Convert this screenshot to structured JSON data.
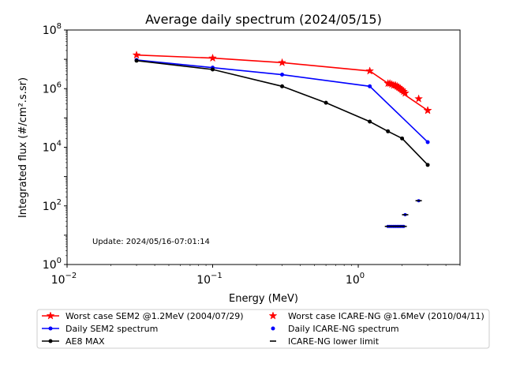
{
  "chart_data": {
    "type": "line",
    "title": "Average daily spectrum (2024/05/15)",
    "xlabel": "Energy (MeV)",
    "ylabel": "Integrated flux (#/cm².s.sr)",
    "xscale": "log",
    "yscale": "log",
    "xlim": [
      0.01,
      5
    ],
    "ylim": [
      1,
      100000000
    ],
    "x_ticks": [
      {
        "value": 0.01,
        "base": "10",
        "exp": "−2"
      },
      {
        "value": 0.1,
        "base": "10",
        "exp": "−1"
      },
      {
        "value": 1,
        "base": "10",
        "exp": "0"
      }
    ],
    "y_ticks": [
      {
        "value": 1,
        "base": "10",
        "exp": "0"
      },
      {
        "value": 100,
        "base": "10",
        "exp": "2"
      },
      {
        "value": 10000,
        "base": "10",
        "exp": "4"
      },
      {
        "value": 1000000,
        "base": "10",
        "exp": "6"
      },
      {
        "value": 100000000,
        "base": "10",
        "exp": "8"
      }
    ],
    "grid": false,
    "legend_position": "below plot",
    "annotation": "Update: 2024/05/16-07:01:14",
    "series": [
      {
        "name": "Worst case SEM2 @1.2MeV (2004/07/29)",
        "color": "#ff0000",
        "marker": "star",
        "line": true,
        "x": [
          0.03,
          0.1,
          0.3,
          1.2,
          3.0
        ],
        "y": [
          14000000,
          11000000,
          7700000,
          4000000,
          180000
        ]
      },
      {
        "name": "Daily SEM2 spectrum",
        "color": "#0000ff",
        "marker": "dot",
        "line": true,
        "x": [
          0.03,
          0.1,
          0.3,
          1.2,
          3.0
        ],
        "y": [
          9500000,
          5200000,
          3000000,
          1200000,
          15000
        ]
      },
      {
        "name": "AE8 MAX",
        "color": "#000000",
        "marker": "dot",
        "line": true,
        "x": [
          0.03,
          0.1,
          0.3,
          0.6,
          1.2,
          1.6,
          2.0,
          3.0
        ],
        "y": [
          9000000,
          4500000,
          1200000,
          330000,
          75000,
          35000,
          20000,
          2500
        ]
      },
      {
        "name": "Worst case ICARE-NG @1.6MeV (2010/04/11)",
        "color": "#ff0000",
        "marker": "star",
        "line": false,
        "x": [
          1.6,
          1.65,
          1.7,
          1.75,
          1.8,
          1.85,
          1.9,
          1.95,
          2.0,
          2.05,
          2.1,
          2.6,
          3.0
        ],
        "y": [
          1500000,
          1500000,
          1400000,
          1300000,
          1300000,
          1200000,
          1100000,
          1000000,
          900000,
          800000,
          700000,
          450000,
          180000
        ]
      },
      {
        "name": "Daily ICARE-NG spectrum",
        "color": "#0000ff",
        "marker": "dot",
        "line": false,
        "x": [
          1.6,
          1.65,
          1.7,
          1.75,
          1.8,
          1.85,
          1.9,
          1.95,
          2.0,
          2.05,
          2.1,
          2.6
        ],
        "y": [
          20,
          20,
          20,
          20,
          20,
          20,
          20,
          20,
          20,
          20,
          50,
          150
        ]
      },
      {
        "name": "ICARE-NG lower limit",
        "color": "#000000",
        "marker": "dash",
        "line": false,
        "x": [
          1.6,
          1.65,
          1.7,
          1.75,
          1.8,
          1.85,
          1.9,
          1.95,
          2.0,
          2.05,
          2.1,
          2.6
        ],
        "y": [
          20,
          20,
          20,
          20,
          20,
          20,
          20,
          20,
          20,
          20,
          50,
          150
        ]
      }
    ]
  }
}
